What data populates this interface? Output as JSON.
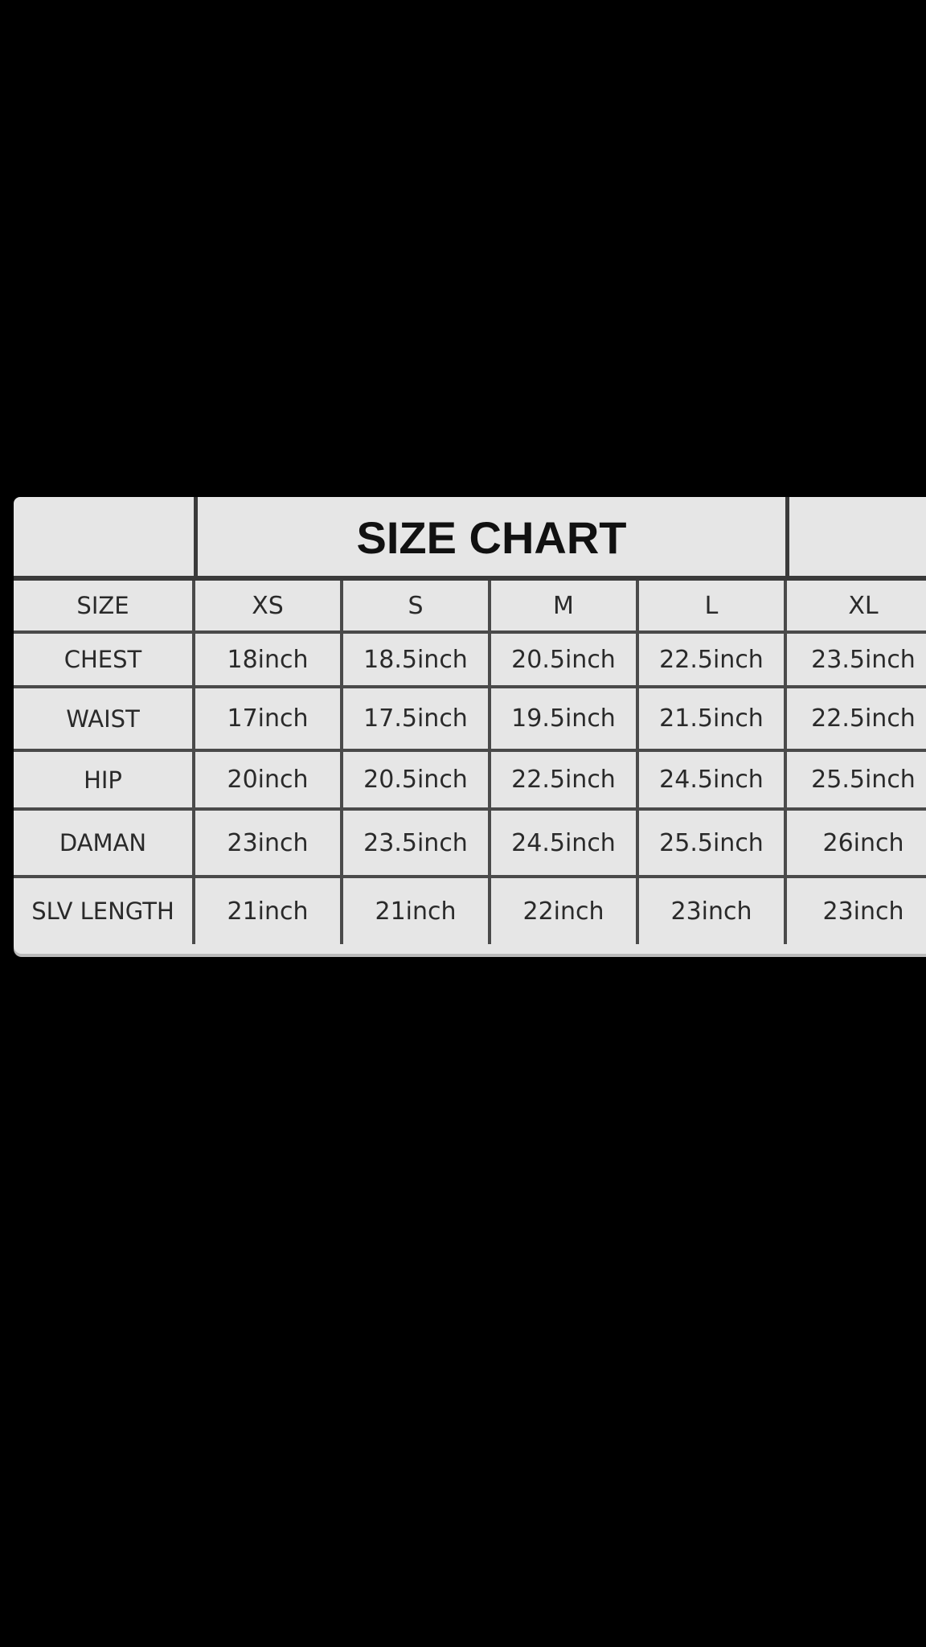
{
  "title": "SIZE CHART",
  "header": {
    "label": "SIZE",
    "sizes": [
      "XS",
      "S",
      "M",
      "L",
      "XL"
    ]
  },
  "rows": [
    {
      "label": "CHEST",
      "values": [
        "18inch",
        "18.5inch",
        "20.5inch",
        "22.5inch",
        "23.5inch"
      ]
    },
    {
      "label": "WAIST",
      "values": [
        "17inch",
        "17.5inch",
        "19.5inch",
        "21.5inch",
        "22.5inch"
      ]
    },
    {
      "label": "HIP",
      "values": [
        "20inch",
        "20.5inch",
        "22.5inch",
        "24.5inch",
        "25.5inch"
      ]
    },
    {
      "label": "DAMAN",
      "values": [
        "23inch",
        "23.5inch",
        "24.5inch",
        "25.5inch",
        "26inch"
      ]
    },
    {
      "label": "SLV LENGTH",
      "values": [
        "21inch",
        "21inch",
        "22inch",
        "23inch",
        "23inch"
      ]
    }
  ]
}
